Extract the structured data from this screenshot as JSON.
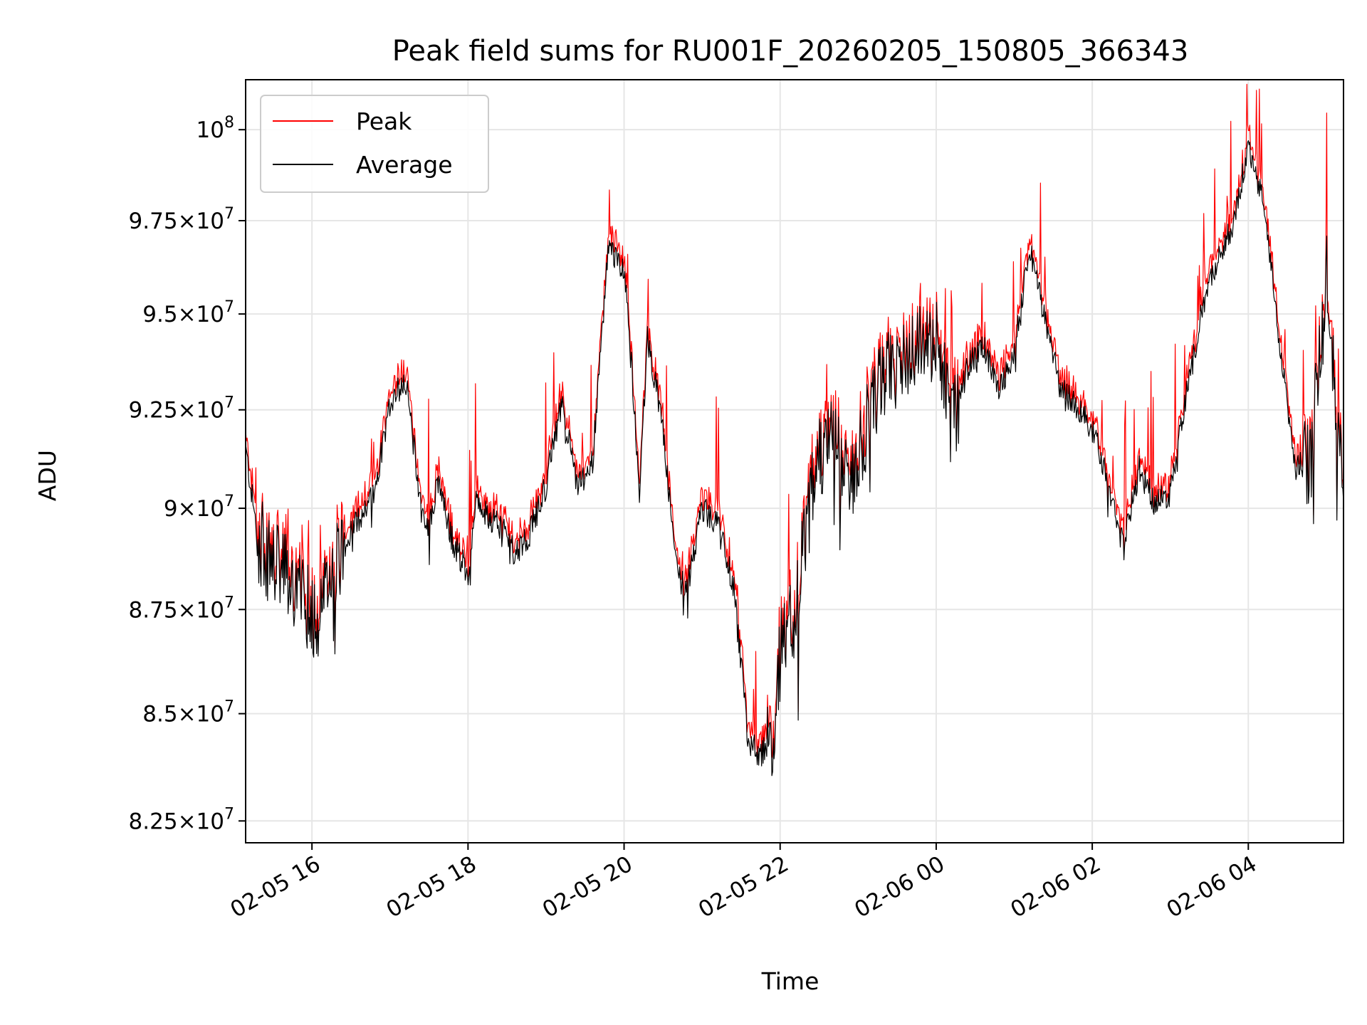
{
  "chart_data": {
    "type": "line",
    "title": "Peak field sums for RU001F_20260205_150805_366343",
    "xlabel": "Time",
    "ylabel": "ADU",
    "yscale": "log",
    "ylim": [
      82000000,
      101400000
    ],
    "xlim_hours": [
      15.15,
      5.22
    ],
    "grid": true,
    "legend_position": "upper-left",
    "x_ticks": [
      {
        "label": "02-05 16",
        "hour": 16.0
      },
      {
        "label": "02-05 18",
        "hour": 18.0
      },
      {
        "label": "02-05 20",
        "hour": 20.0
      },
      {
        "label": "02-05 22",
        "hour": 22.0
      },
      {
        "label": "02-06 00",
        "hour": 24.0
      },
      {
        "label": "02-06 02",
        "hour": 26.0
      },
      {
        "label": "02-06 04",
        "hour": 28.0
      }
    ],
    "y_ticks": [
      {
        "value": 82500000,
        "mantissa": "8.25",
        "exp": "7"
      },
      {
        "value": 85000000,
        "mantissa": "8.5",
        "exp": "7"
      },
      {
        "value": 87500000,
        "mantissa": "8.75",
        "exp": "7"
      },
      {
        "value": 90000000,
        "mantissa": "9",
        "exp": "7"
      },
      {
        "value": 92500000,
        "mantissa": "9.25",
        "exp": "7"
      },
      {
        "value": 95000000,
        "mantissa": "9.5",
        "exp": "7"
      },
      {
        "value": 97500000,
        "mantissa": "9.75",
        "exp": "7"
      },
      {
        "value": 100000000,
        "mantissa": "",
        "exp": "8"
      }
    ],
    "series": [
      {
        "name": "Peak",
        "color": "#ff0000"
      },
      {
        "name": "Average",
        "color": "#000000"
      }
    ],
    "average_anchors_hours": [
      15.15,
      15.3,
      15.5,
      15.7,
      15.9,
      16.1,
      16.3,
      16.5,
      16.8,
      17.0,
      17.2,
      17.4,
      17.5,
      17.6,
      17.8,
      18.0,
      18.1,
      18.2,
      18.4,
      18.6,
      18.8,
      19.0,
      19.2,
      19.4,
      19.6,
      19.8,
      20.0,
      20.1,
      20.2,
      20.3,
      20.5,
      20.6,
      20.7,
      20.8,
      21.0,
      21.2,
      21.4,
      21.6,
      21.8,
      21.9,
      22.0,
      22.2,
      22.4,
      22.5,
      22.7,
      22.9,
      23.1,
      23.3,
      23.5,
      23.7,
      24.0,
      24.2,
      24.4,
      24.6,
      24.8,
      25.0,
      25.2,
      25.4,
      25.6,
      25.8,
      26.0,
      26.2,
      26.4,
      26.6,
      26.8,
      27.0,
      27.2,
      27.4,
      27.6,
      27.8,
      28.0,
      28.2,
      28.4,
      28.6,
      28.8,
      29.0,
      29.22
    ],
    "average_anchors_values": [
      91.5,
      89.3,
      88.6,
      88.3,
      87.6,
      87.3,
      88.7,
      89.4,
      90.4,
      92.7,
      93.3,
      90.0,
      89.4,
      90.7,
      89.2,
      88.4,
      90.1,
      89.9,
      89.6,
      88.9,
      89.4,
      90.6,
      92.7,
      90.5,
      91.2,
      96.8,
      96.2,
      93.5,
      90.3,
      94.4,
      92.0,
      89.8,
      88.3,
      87.9,
      90.0,
      89.6,
      88.1,
      84.2,
      84.1,
      84.5,
      86.4,
      87.5,
      90.3,
      91.3,
      91.7,
      90.4,
      92.0,
      93.3,
      93.6,
      94.0,
      94.5,
      92.0,
      93.6,
      94.2,
      93.0,
      94.0,
      96.8,
      94.8,
      93.0,
      92.6,
      92.0,
      90.7,
      89.0,
      91.0,
      90.1,
      90.4,
      92.8,
      95.0,
      96.4,
      97.4,
      99.5,
      98.0,
      94.2,
      91.0,
      91.2,
      96.2,
      90.3
    ]
  }
}
